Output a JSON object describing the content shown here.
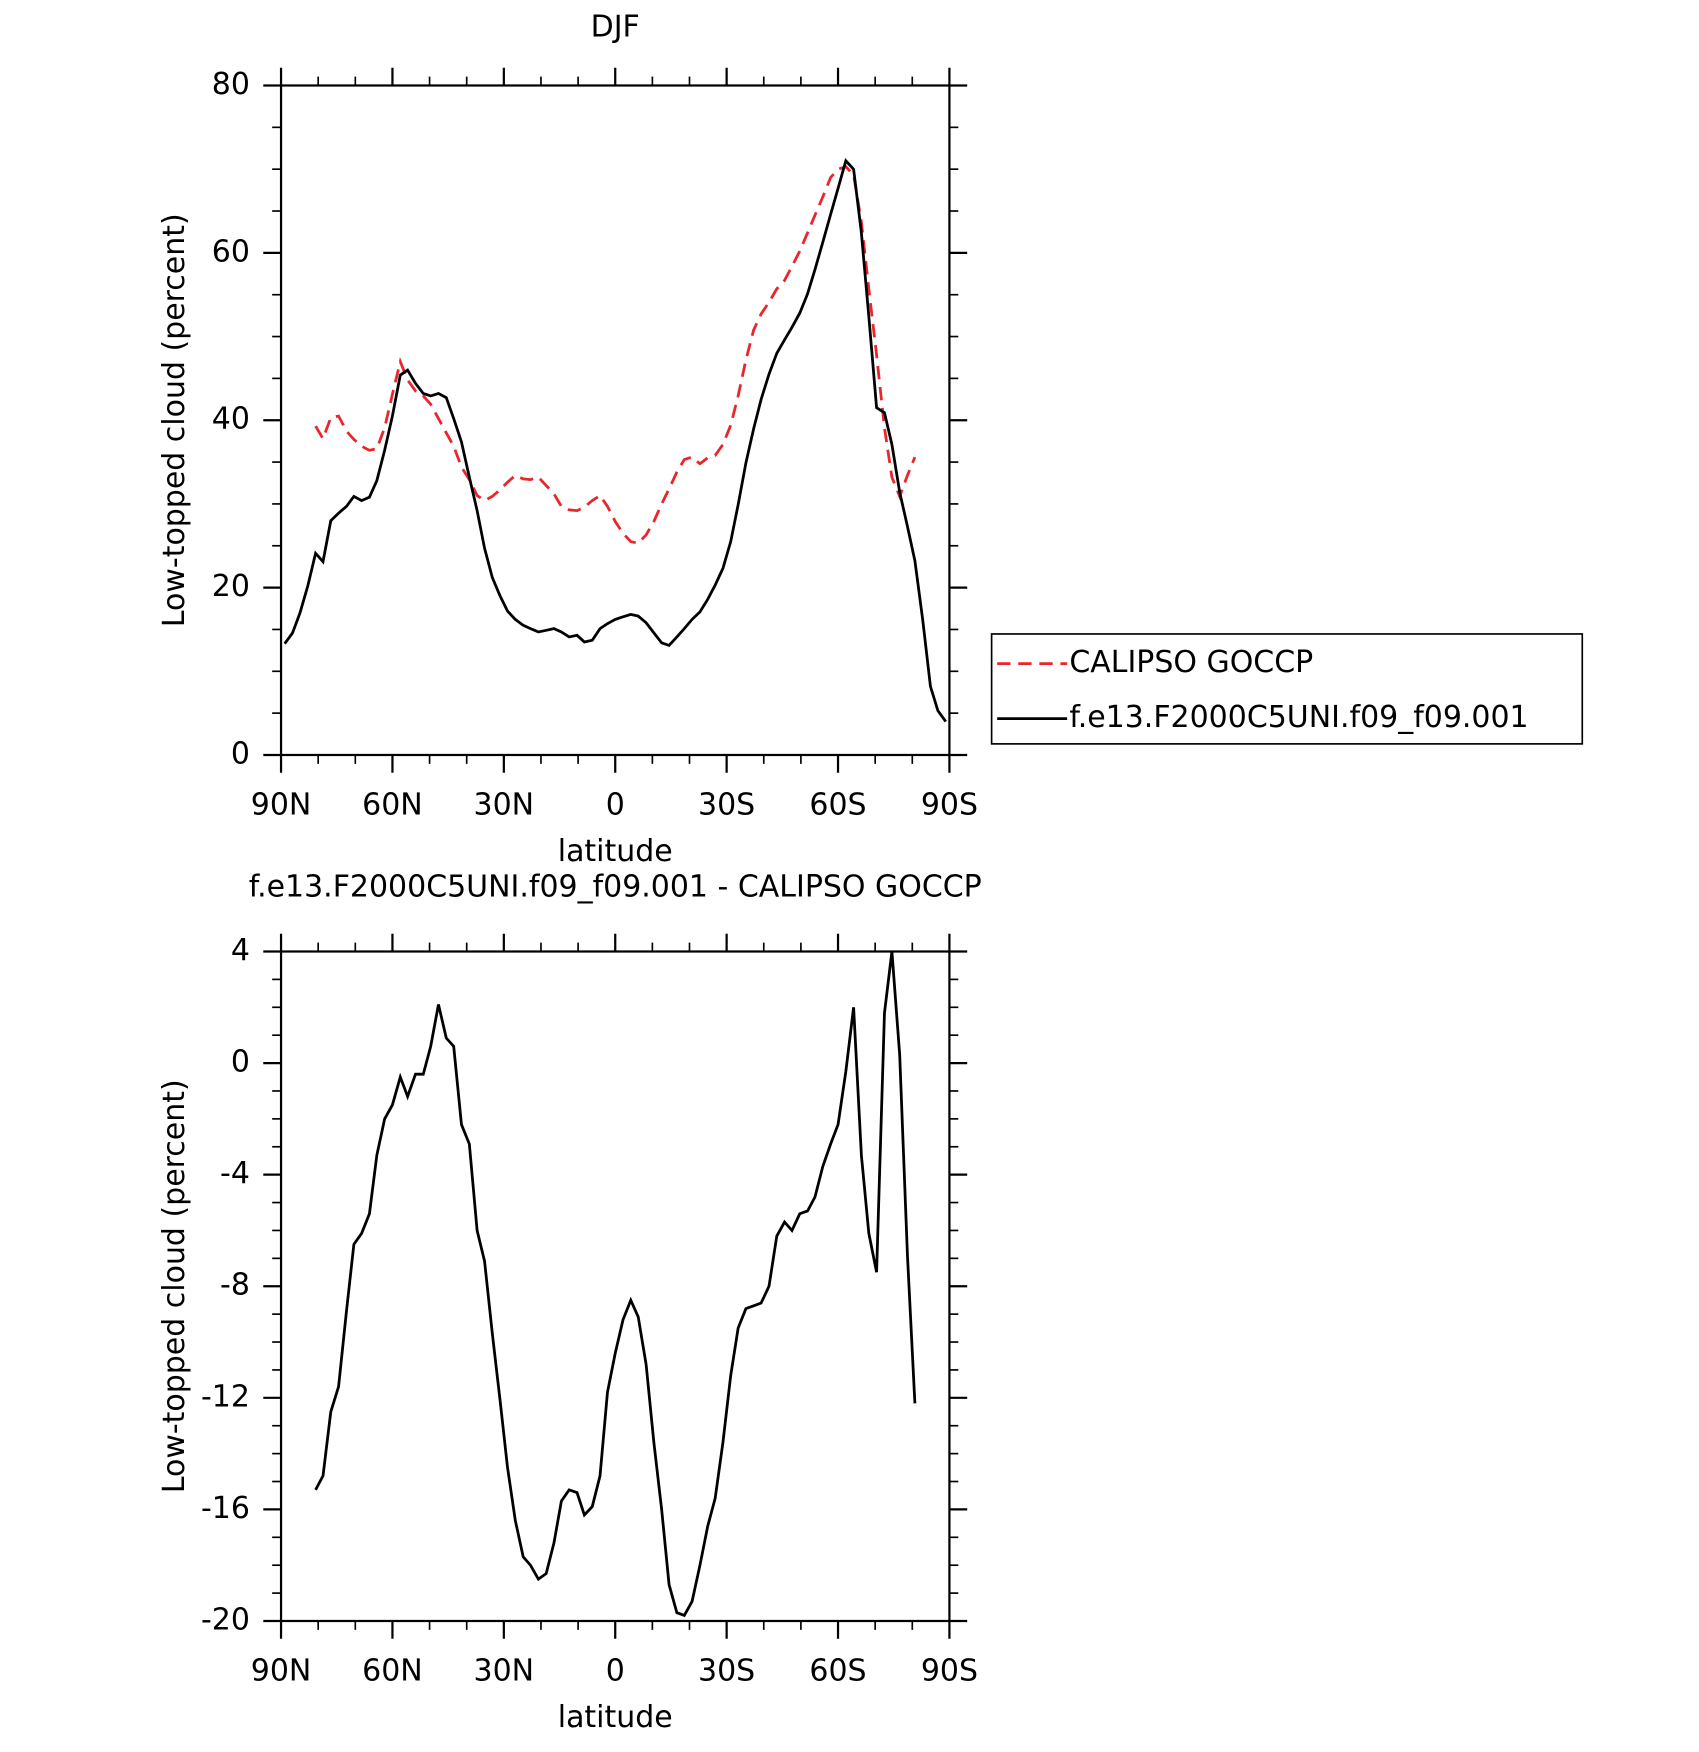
{
  "chart_data": [
    {
      "type": "line",
      "title": "DJF",
      "x_label": "latitude",
      "y_label": "Low-topped cloud (percent)",
      "x": [
        89.0,
        86.9,
        84.9,
        82.8,
        80.7,
        78.7,
        76.6,
        74.5,
        72.4,
        70.4,
        68.3,
        66.2,
        64.2,
        62.1,
        60.0,
        57.9,
        55.9,
        53.8,
        51.7,
        49.7,
        47.6,
        45.5,
        43.5,
        41.4,
        39.3,
        37.2,
        35.2,
        33.1,
        31.0,
        29.0,
        26.9,
        24.8,
        22.8,
        20.7,
        18.6,
        16.5,
        14.5,
        12.4,
        10.3,
        8.3,
        6.2,
        4.1,
        2.1,
        0.0,
        -2.1,
        -4.2,
        -6.2,
        -8.3,
        -10.4,
        -12.5,
        -14.5,
        -16.6,
        -18.6,
        -20.7,
        -22.8,
        -24.9,
        -26.9,
        -29.0,
        -31.1,
        -33.1,
        -35.2,
        -37.3,
        -39.3,
        -41.4,
        -43.5,
        -45.6,
        -47.6,
        -49.7,
        -51.8,
        -53.8,
        -55.9,
        -58.0,
        -60.0,
        -62.1,
        -64.2,
        -66.3,
        -68.3,
        -70.4,
        -72.5,
        -74.5,
        -76.6,
        -78.7,
        -80.7,
        -82.8,
        -84.9,
        -86.9,
        -89.0
      ],
      "series": [
        {
          "name": "CALIPSO GOCCP",
          "color": "#e8262b",
          "line_style": "dashed",
          "values": [
            null,
            null,
            null,
            null,
            39.3,
            37.8,
            40.3,
            40.5,
            38.7,
            37.7,
            36.9,
            36.4,
            36.6,
            39.1,
            43.1,
            47,
            44.8,
            43.5,
            42.9,
            41.9,
            40.2,
            38.5,
            36.9,
            34.4,
            32.9,
            31,
            30.4,
            30.9,
            31.7,
            32.6,
            33.4,
            33,
            32.9,
            33.2,
            32.2,
            31.2,
            29.7,
            29.3,
            29.2,
            29.6,
            30.4,
            31,
            29.7,
            27.9,
            26.5,
            25.5,
            25.3,
            26.3,
            27.9,
            30,
            31.8,
            33.8,
            35.3,
            35.6,
            34.8,
            35.5,
            35.8,
            37.1,
            39.4,
            42.9,
            47.2,
            50.8,
            52.7,
            54.1,
            55.7,
            56.7,
            58.4,
            60.2,
            62.4,
            64.5,
            66.7,
            69,
            70,
            70.3,
            69.3,
            63.7,
            55.7,
            47.8,
            39.1,
            33.2,
            30.9,
            33.4,
            35.6,
            null,
            null,
            null,
            null
          ]
        },
        {
          "name": "f.e13.F2000C5UNI.f09_f09.001",
          "color": "#000000",
          "line_style": "solid",
          "values": [
            13.3,
            14.6,
            17,
            20.2,
            24.1,
            23.1,
            28,
            28.9,
            29.7,
            30.9,
            30.4,
            30.8,
            32.8,
            36.4,
            40.5,
            45.4,
            46,
            44.4,
            43.2,
            42.9,
            43.2,
            42.7,
            40.2,
            37.4,
            33.2,
            29.2,
            24.7,
            21.2,
            19,
            17.2,
            16.2,
            15.5,
            15.1,
            14.7,
            14.9,
            15.1,
            14.7,
            14.1,
            14.3,
            13.5,
            13.7,
            15.1,
            15.7,
            16.2,
            16.5,
            16.8,
            16.6,
            15.8,
            14.6,
            13.4,
            13.1,
            14.1,
            15.1,
            16.2,
            17.1,
            18.6,
            20.3,
            22.3,
            25.5,
            29.9,
            34.9,
            39,
            42.5,
            45.5,
            48,
            49.6,
            51.1,
            52.8,
            55.1,
            58,
            61.3,
            64.6,
            67.7,
            71,
            70,
            62.4,
            52.4,
            41.5,
            40.9,
            37.1,
            31.4,
            27.3,
            23.2,
            16.2,
            8.2,
            5.3,
            4
          ]
        }
      ],
      "xlim": [
        90,
        -90
      ],
      "xticks": [
        {
          "value": 90,
          "label": "90N"
        },
        {
          "value": 60,
          "label": "60N"
        },
        {
          "value": 30,
          "label": "30N"
        },
        0,
        {
          "value": -30,
          "label": "30S"
        },
        {
          "value": -60,
          "label": "60S"
        },
        {
          "value": -90,
          "label": "90S"
        }
      ],
      "ylim": [
        0,
        80
      ],
      "yticks": [
        0,
        20,
        40,
        60,
        80
      ],
      "legend": "right"
    },
    {
      "type": "line",
      "title": "f.e13.F2000C5UNI.f09_f09.001 - CALIPSO GOCCP",
      "x_label": "latitude",
      "y_label": "Low-topped cloud (percent)",
      "x": [
        89.0,
        86.9,
        84.9,
        82.8,
        80.7,
        78.7,
        76.6,
        74.5,
        72.4,
        70.4,
        68.3,
        66.2,
        64.2,
        62.1,
        60.0,
        57.9,
        55.9,
        53.8,
        51.7,
        49.7,
        47.6,
        45.5,
        43.5,
        41.4,
        39.3,
        37.2,
        35.2,
        33.1,
        31.0,
        29.0,
        26.9,
        24.8,
        22.8,
        20.7,
        18.6,
        16.5,
        14.5,
        12.4,
        10.3,
        8.3,
        6.2,
        4.1,
        2.1,
        0.0,
        -2.1,
        -4.2,
        -6.2,
        -8.3,
        -10.4,
        -12.5,
        -14.5,
        -16.6,
        -18.6,
        -20.7,
        -22.8,
        -24.9,
        -26.9,
        -29.0,
        -31.1,
        -33.1,
        -35.2,
        -37.3,
        -39.3,
        -41.4,
        -43.5,
        -45.6,
        -47.6,
        -49.7,
        -51.8,
        -53.8,
        -55.9,
        -58.0,
        -60.0,
        -62.1,
        -64.2,
        -66.3,
        -68.3,
        -70.4,
        -72.5,
        -74.5,
        -76.6,
        -78.7,
        -80.7,
        -82.8,
        -84.9,
        -86.9,
        -89.0
      ],
      "series": [
        {
          "color": "#000000",
          "line_style": "solid",
          "values": [
            null,
            null,
            null,
            null,
            -15.3,
            -14.8,
            -12.5,
            -11.6,
            -8.9,
            -6.5,
            -6.1,
            -5.4,
            -3.3,
            -2,
            -1.5,
            -0.5,
            -1.2,
            -0.4,
            -0.4,
            0.6,
            2.1,
            0.9,
            0.6,
            -2.2,
            -2.9,
            -6,
            -7.1,
            -9.7,
            -12.1,
            -14.5,
            -16.4,
            -17.7,
            -18,
            -18.5,
            -18.3,
            -17.2,
            -15.7,
            -15.3,
            -15.4,
            -16.2,
            -15.9,
            -14.8,
            -11.8,
            -10.4,
            -9.2,
            -8.5,
            -9.1,
            -10.8,
            -13.6,
            -16,
            -18.7,
            -19.7,
            -19.8,
            -19.3,
            -18,
            -16.6,
            -15.6,
            -13.6,
            -11.2,
            -9.5,
            -8.8,
            -8.7,
            -8.6,
            -8,
            -6.2,
            -5.7,
            -6,
            -5.4,
            -5.3,
            -4.8,
            -3.7,
            -2.9,
            -2.2,
            -0.3,
            2,
            -3.3,
            -6.1,
            -7.5,
            1.8,
            4,
            0.3,
            -6.9,
            -12.2,
            null,
            null,
            null,
            null
          ]
        }
      ],
      "xlim": [
        90,
        -90
      ],
      "xticks": [
        {
          "value": 90,
          "label": "90N"
        },
        {
          "value": 60,
          "label": "60N"
        },
        {
          "value": 30,
          "label": "30N"
        },
        0,
        {
          "value": -30,
          "label": "30S"
        },
        {
          "value": -60,
          "label": "60S"
        },
        {
          "value": -90,
          "label": "90S"
        }
      ],
      "ylim": [
        -20,
        4
      ],
      "yticks": [
        -20,
        -16,
        -12,
        -8,
        -4,
        0,
        4
      ]
    }
  ]
}
